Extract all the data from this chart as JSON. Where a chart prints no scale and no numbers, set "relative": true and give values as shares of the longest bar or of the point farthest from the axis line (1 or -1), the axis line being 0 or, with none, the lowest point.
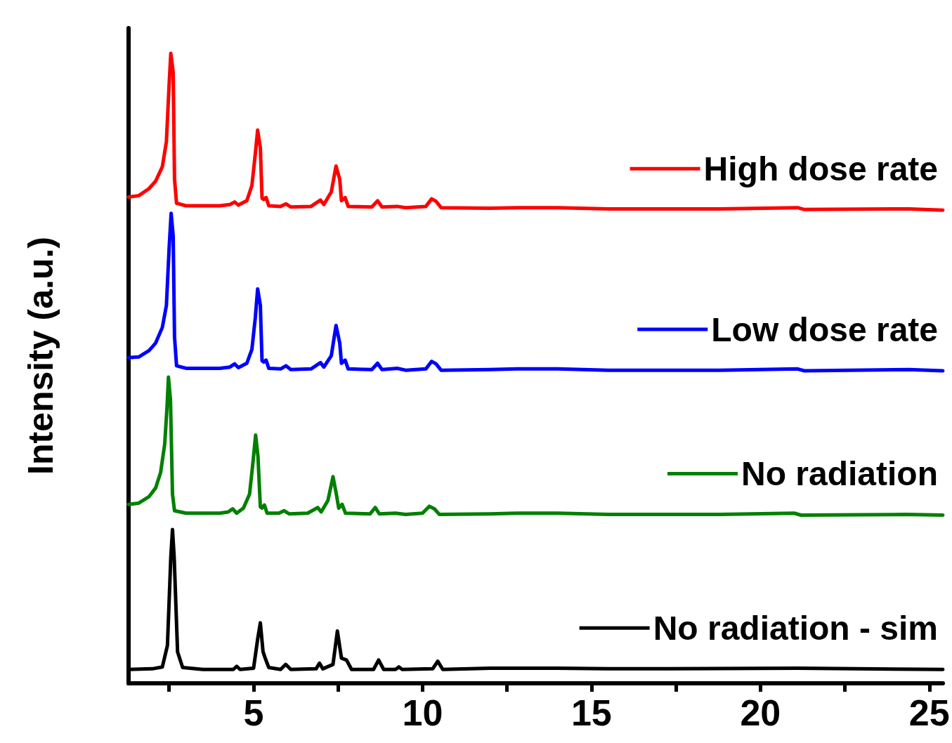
{
  "chart_data": {
    "type": "line",
    "ylabel": "Intensity (a.u.)",
    "relative": true,
    "xlim": [
      1.3,
      25.4
    ],
    "xticks": [
      {
        "value": 2.5,
        "label": null
      },
      5,
      {
        "value": 7.5,
        "label": null
      },
      10,
      {
        "value": 12.5,
        "label": null
      },
      15,
      {
        "value": 17.5,
        "label": null
      },
      20,
      {
        "value": 22.5,
        "label": null
      },
      25
    ],
    "tick_labels": "x",
    "grid": false,
    "legend": "right",
    "marker": "none",
    "line_style": "solid",
    "series": [
      {
        "name": "High dose rate",
        "color": "#ff0000",
        "x": [
          1.3,
          1.6,
          1.9,
          2.1,
          2.3,
          2.42,
          2.5,
          2.55,
          2.62,
          2.66,
          2.72,
          3.0,
          4.0,
          4.3,
          4.44,
          4.55,
          4.8,
          4.95,
          5.05,
          5.12,
          5.2,
          5.25,
          5.3,
          5.37,
          5.45,
          5.8,
          5.96,
          6.1,
          6.7,
          6.98,
          7.08,
          7.3,
          7.44,
          7.55,
          7.6,
          7.71,
          7.8,
          8.5,
          8.67,
          8.8,
          9.25,
          9.5,
          10.1,
          10.27,
          10.4,
          10.55,
          12.0,
          12.8,
          14.0,
          15.5,
          17.2,
          18.8,
          21.1,
          21.3,
          24.4,
          25.4
        ],
        "values": [
          0.772,
          0.774,
          0.785,
          0.797,
          0.82,
          0.86,
          0.95,
          1.0,
          0.97,
          0.8,
          0.762,
          0.758,
          0.758,
          0.76,
          0.764,
          0.759,
          0.766,
          0.79,
          0.84,
          0.878,
          0.85,
          0.77,
          0.768,
          0.771,
          0.758,
          0.757,
          0.761,
          0.756,
          0.757,
          0.767,
          0.76,
          0.78,
          0.821,
          0.8,
          0.766,
          0.771,
          0.757,
          0.756,
          0.766,
          0.756,
          0.757,
          0.755,
          0.757,
          0.769,
          0.765,
          0.755,
          0.754,
          0.755,
          0.755,
          0.753,
          0.753,
          0.753,
          0.755,
          0.752,
          0.753,
          0.751
        ]
      },
      {
        "name": "Low dose rate",
        "color": "#0000ff",
        "x": [
          1.3,
          1.6,
          1.9,
          2.1,
          2.3,
          2.42,
          2.5,
          2.56,
          2.62,
          2.66,
          2.72,
          3.0,
          4.0,
          4.3,
          4.44,
          4.55,
          4.8,
          4.95,
          5.05,
          5.12,
          5.2,
          5.25,
          5.3,
          5.37,
          5.45,
          5.8,
          5.96,
          6.1,
          6.7,
          6.98,
          7.08,
          7.3,
          7.44,
          7.55,
          7.6,
          7.71,
          7.8,
          8.5,
          8.67,
          8.8,
          9.25,
          9.5,
          10.1,
          10.27,
          10.4,
          10.55,
          12.0,
          12.8,
          14.0,
          15.5,
          17.2,
          18.8,
          21.1,
          21.3,
          24.4,
          25.4
        ],
        "values": [
          0.517,
          0.518,
          0.528,
          0.54,
          0.565,
          0.6,
          0.69,
          0.746,
          0.71,
          0.55,
          0.504,
          0.5,
          0.5,
          0.502,
          0.507,
          0.501,
          0.508,
          0.53,
          0.58,
          0.626,
          0.6,
          0.512,
          0.51,
          0.513,
          0.5,
          0.499,
          0.504,
          0.498,
          0.499,
          0.509,
          0.502,
          0.52,
          0.568,
          0.54,
          0.508,
          0.513,
          0.499,
          0.498,
          0.508,
          0.498,
          0.5,
          0.497,
          0.499,
          0.511,
          0.507,
          0.497,
          0.498,
          0.499,
          0.499,
          0.497,
          0.497,
          0.497,
          0.499,
          0.496,
          0.498,
          0.496
        ]
      },
      {
        "name": "No radiation",
        "color": "#008000",
        "x": [
          1.3,
          1.6,
          1.9,
          2.1,
          2.25,
          2.37,
          2.44,
          2.48,
          2.54,
          2.6,
          2.66,
          3.0,
          4.0,
          4.25,
          4.38,
          4.5,
          4.7,
          4.88,
          4.98,
          5.06,
          5.13,
          5.2,
          5.25,
          5.32,
          5.4,
          5.75,
          5.9,
          6.05,
          6.6,
          6.9,
          7.0,
          7.2,
          7.35,
          7.45,
          7.52,
          7.62,
          7.72,
          8.45,
          8.6,
          8.72,
          9.2,
          9.5,
          10.0,
          10.2,
          10.35,
          10.5,
          12.0,
          12.8,
          14.0,
          15.5,
          17.2,
          18.8,
          21.0,
          21.2,
          24.3,
          25.4
        ],
        "values": [
          0.284,
          0.286,
          0.296,
          0.31,
          0.335,
          0.38,
          0.44,
          0.486,
          0.45,
          0.3,
          0.274,
          0.27,
          0.27,
          0.272,
          0.277,
          0.27,
          0.278,
          0.3,
          0.35,
          0.394,
          0.36,
          0.28,
          0.278,
          0.283,
          0.27,
          0.27,
          0.274,
          0.269,
          0.27,
          0.279,
          0.272,
          0.29,
          0.328,
          0.3,
          0.278,
          0.284,
          0.27,
          0.269,
          0.279,
          0.269,
          0.27,
          0.268,
          0.27,
          0.281,
          0.277,
          0.268,
          0.269,
          0.27,
          0.27,
          0.268,
          0.268,
          0.268,
          0.27,
          0.267,
          0.268,
          0.267
        ]
      },
      {
        "name": "No radiation - sim",
        "color": "#000000",
        "x": [
          1.3,
          2.0,
          2.3,
          2.45,
          2.55,
          2.6,
          2.65,
          2.75,
          2.9,
          3.5,
          4.4,
          4.5,
          4.6,
          5.0,
          5.12,
          5.2,
          5.28,
          5.35,
          5.45,
          5.8,
          5.95,
          6.1,
          6.85,
          6.95,
          7.05,
          7.35,
          7.48,
          7.6,
          7.75,
          7.9,
          8.55,
          8.7,
          8.85,
          9.2,
          9.3,
          9.4,
          10.3,
          10.45,
          10.6,
          12.0,
          14.0,
          15.5,
          17.2,
          21.1,
          25.4
        ],
        "values": [
          0.022,
          0.023,
          0.026,
          0.06,
          0.2,
          0.244,
          0.2,
          0.05,
          0.025,
          0.022,
          0.022,
          0.027,
          0.022,
          0.024,
          0.07,
          0.096,
          0.05,
          0.039,
          0.025,
          0.022,
          0.03,
          0.022,
          0.023,
          0.032,
          0.023,
          0.03,
          0.083,
          0.04,
          0.037,
          0.022,
          0.022,
          0.037,
          0.022,
          0.022,
          0.026,
          0.022,
          0.023,
          0.035,
          0.022,
          0.024,
          0.024,
          0.023,
          0.023,
          0.024,
          0.022
        ]
      }
    ]
  }
}
